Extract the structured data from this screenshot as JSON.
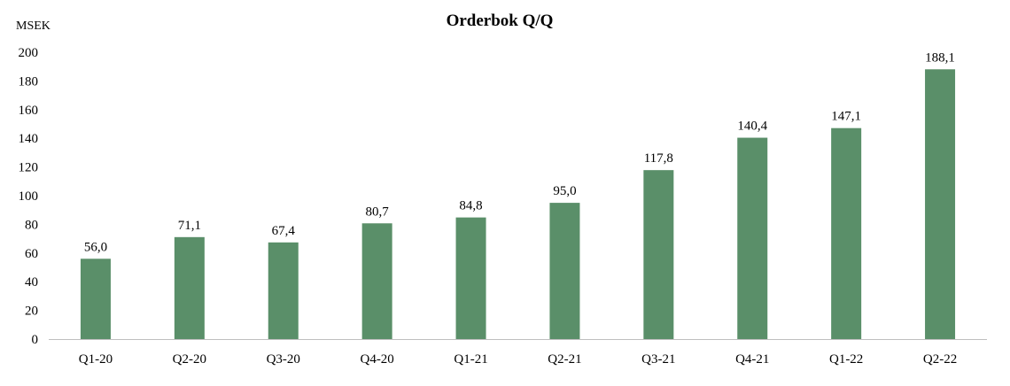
{
  "chart_data": {
    "type": "bar",
    "title": "Orderbok Q/Q",
    "unit_label": "MSEK",
    "categories": [
      "Q1-20",
      "Q2-20",
      "Q3-20",
      "Q4-20",
      "Q1-21",
      "Q2-21",
      "Q3-21",
      "Q4-21",
      "Q1-22",
      "Q2-22"
    ],
    "values": [
      56.0,
      71.1,
      67.4,
      80.7,
      84.8,
      95.0,
      117.8,
      140.4,
      147.1,
      188.1
    ],
    "data_labels": [
      "56,0",
      "71,1",
      "67,4",
      "80,7",
      "84,8",
      "95,0",
      "117,8",
      "140,4",
      "147,1",
      "188,1"
    ],
    "ylim": [
      0,
      200
    ],
    "yticks": [
      0,
      20,
      40,
      60,
      80,
      100,
      120,
      140,
      160,
      180,
      200
    ],
    "grid": false,
    "legend": "none",
    "bar_color": "#5a8f69",
    "axis_color": "#bfbfbf"
  }
}
